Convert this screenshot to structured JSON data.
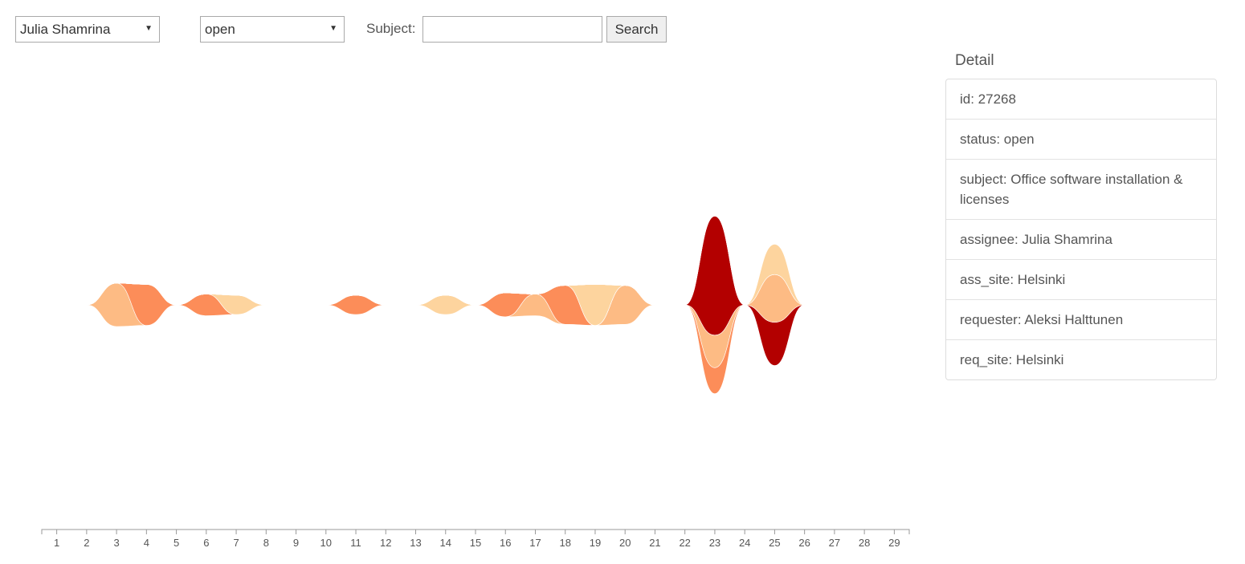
{
  "filters": {
    "assignee": "Julia Shamrina",
    "status": "open",
    "subject_label": "Subject:",
    "subject_value": "",
    "search_label": "Search"
  },
  "detail": {
    "title": "Detail",
    "items": [
      "id: 27268",
      "status: open",
      "subject: Office software installation & licenses",
      "assignee: Julia Shamrina",
      "ass_site: Helsinki",
      "requester: Aleksi Halttunen",
      "req_site: Helsinki"
    ]
  },
  "colors": {
    "lightest": "#fdd49e",
    "light": "#fdbb84",
    "medium": "#fc8d59",
    "dark": "#b30000"
  },
  "chart_data": {
    "type": "area",
    "x": [
      1,
      2,
      3,
      4,
      5,
      6,
      7,
      8,
      9,
      10,
      11,
      12,
      13,
      14,
      15,
      16,
      17,
      18,
      19,
      20,
      21,
      22,
      23,
      24,
      25,
      26,
      27,
      28,
      29
    ],
    "xlim": [
      0.5,
      29.5
    ],
    "series": [
      {
        "color": "light",
        "values": [
          0,
          0,
          20,
          0,
          0,
          0,
          0,
          0,
          0,
          0,
          0,
          0,
          0,
          0,
          0,
          0,
          10,
          0,
          0,
          18,
          0,
          0,
          0,
          0,
          0,
          0,
          0,
          0,
          0
        ]
      },
      {
        "color": "medium",
        "values": [
          0,
          0,
          0,
          19,
          0,
          0,
          0,
          0,
          0,
          0,
          0,
          0,
          0,
          0,
          0,
          0,
          0,
          18,
          0,
          0,
          0,
          0,
          0,
          0,
          0,
          0,
          0,
          0,
          0
        ]
      },
      {
        "color": "medium",
        "values": [
          0,
          0,
          0,
          0,
          0,
          10,
          0,
          0,
          0,
          0,
          9,
          0,
          0,
          0,
          0,
          11,
          0,
          0,
          0,
          0,
          0,
          0,
          0,
          0,
          0,
          0,
          0,
          0,
          0
        ]
      },
      {
        "color": "lightest",
        "values": [
          0,
          0,
          0,
          0,
          0,
          0,
          9,
          0,
          0,
          0,
          0,
          0,
          0,
          9,
          0,
          0,
          0,
          0,
          19,
          0,
          0,
          0,
          0,
          0,
          0,
          0,
          0,
          0,
          0
        ]
      },
      {
        "color": "medium",
        "values": [
          0,
          0,
          0,
          0,
          0,
          0,
          0,
          0,
          0,
          0,
          0,
          0,
          0,
          0,
          0,
          0,
          0,
          0,
          0,
          0,
          0,
          0,
          12,
          0,
          0,
          0,
          0,
          0,
          0
        ]
      },
      {
        "color": "light",
        "values": [
          0,
          0,
          0,
          0,
          0,
          0,
          0,
          0,
          0,
          0,
          0,
          0,
          0,
          0,
          0,
          0,
          0,
          0,
          0,
          0,
          0,
          0,
          15,
          0,
          0,
          0,
          0,
          0,
          0
        ]
      },
      {
        "color": "dark",
        "values": [
          0,
          0,
          0,
          0,
          0,
          0,
          0,
          0,
          0,
          0,
          0,
          0,
          0,
          0,
          0,
          0,
          0,
          0,
          0,
          0,
          0,
          0,
          55,
          0,
          20,
          0,
          0,
          0,
          0
        ]
      },
      {
        "color": "light",
        "values": [
          0,
          0,
          0,
          0,
          0,
          0,
          0,
          0,
          0,
          0,
          0,
          0,
          0,
          0,
          0,
          0,
          0,
          0,
          0,
          0,
          0,
          0,
          0,
          0,
          22,
          0,
          0,
          0,
          0
        ]
      },
      {
        "color": "lightest",
        "values": [
          0,
          0,
          0,
          0,
          0,
          0,
          0,
          0,
          0,
          0,
          0,
          0,
          0,
          0,
          0,
          0,
          0,
          0,
          0,
          0,
          0,
          0,
          0,
          0,
          14,
          0,
          0,
          0,
          0
        ]
      }
    ]
  }
}
